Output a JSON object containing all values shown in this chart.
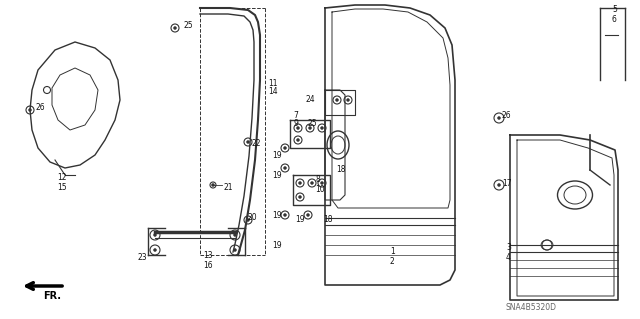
{
  "bg_color": "#ffffff",
  "fig_width": 6.4,
  "fig_height": 3.19,
  "dpi": 100,
  "line_color": "#333333",
  "text_color": "#111111",
  "font_size_label": 5.5,
  "font_size_watermark": 5.5,
  "watermark": "SNA4B5320D",
  "arrow_label": "FR."
}
